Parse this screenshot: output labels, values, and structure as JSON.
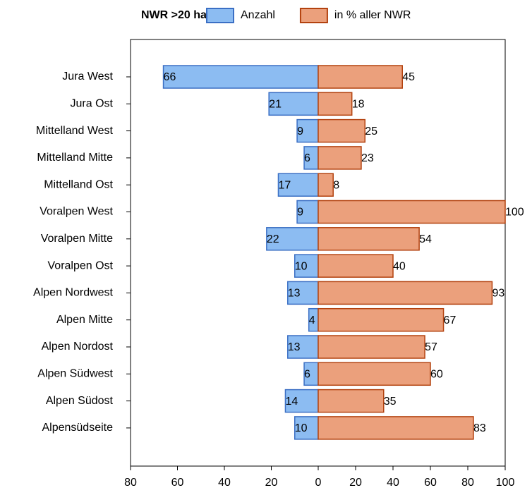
{
  "chart_data": {
    "type": "butterfly-bar",
    "legend_title": "NWR >20 ha",
    "categories": [
      "Jura West",
      "Jura Ost",
      "Mittelland West",
      "Mittelland Mitte",
      "Mittelland Ost",
      "Voralpen West",
      "Voralpen Mitte",
      "Voralpen Ost",
      "Alpen Nordwest",
      "Alpen Mitte",
      "Alpen Nordost",
      "Alpen Südwest",
      "Alpen Südost",
      "Alpensüdseite"
    ],
    "series": [
      {
        "name": "Anzahl",
        "color": "#8cbcf2",
        "edgecolor": "#3b6fc4",
        "axis": "x2",
        "values": [
          -66,
          -21,
          -9,
          -6,
          -17,
          -9,
          -22,
          -10,
          -13,
          -4,
          -13,
          -6,
          -14,
          -10
        ],
        "value_labels": [
          "66",
          "21",
          "9",
          "6",
          "17",
          "9",
          "22",
          "10",
          "13",
          "4",
          "13",
          "6",
          "14",
          "10"
        ]
      },
      {
        "name": "in % aller NWR",
        "color": "#eba07c",
        "edgecolor": "#b3420f",
        "values": [
          45,
          18,
          25,
          23,
          8,
          100,
          54,
          40,
          93,
          67,
          57,
          60,
          35,
          83
        ]
      }
    ],
    "x2lim": [
      -80,
      0
    ],
    "x2ticks": [
      {
        "value": -80,
        "label": "80"
      },
      {
        "value": -60,
        "label": "60"
      },
      {
        "value": -40,
        "label": "40"
      },
      {
        "value": -20,
        "label": "20"
      }
    ],
    "xlim": [
      0,
      100
    ],
    "xticks": [
      0,
      20,
      40,
      60,
      80,
      100
    ]
  }
}
